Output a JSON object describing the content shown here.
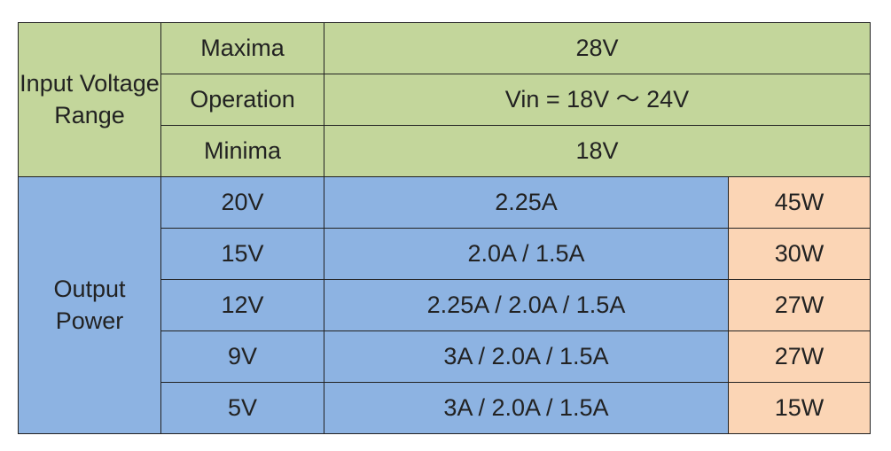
{
  "table": {
    "input": {
      "label": "Input Voltage Range",
      "rows": [
        [
          "Maxima",
          "28V"
        ],
        [
          "Operation",
          "Vin = 18V ～ 24V"
        ],
        [
          "Minima",
          "18V"
        ]
      ]
    },
    "output": {
      "label": "Output Power",
      "rows": [
        [
          "20V",
          "2.25A",
          "45W"
        ],
        [
          "15V",
          "2.0A / 1.5A",
          "30W"
        ],
        [
          "12V",
          "2.25A / 2.0A / 1.5A",
          "27W"
        ],
        [
          "9V",
          "3A / 2.0A / 1.5A",
          "27W"
        ],
        [
          "5V",
          "3A / 2.0A / 1.5A",
          "15W"
        ]
      ]
    }
  }
}
